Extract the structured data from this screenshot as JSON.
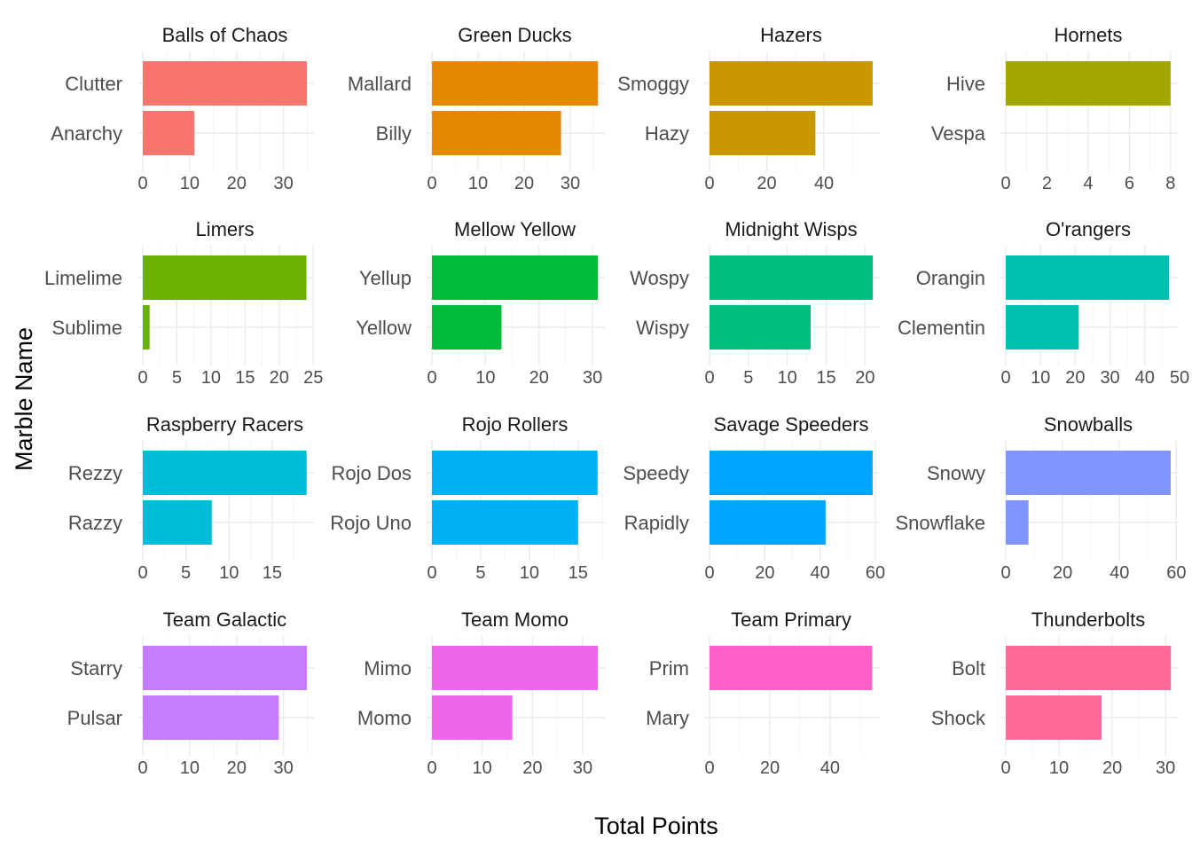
{
  "chart_data": {
    "type": "bar",
    "orientation": "horizontal",
    "faceted": true,
    "facet_grid": "4x4",
    "free_x_scales": true,
    "xlabel": "Total Points",
    "ylabel": "Marble Name",
    "grid": true,
    "legend": "none",
    "facets": [
      {
        "team": "Balls of Chaos",
        "color": "#F8766D",
        "bars": [
          {
            "name": "Clutter",
            "value": 35
          },
          {
            "name": "Anarchy",
            "value": 11
          }
        ],
        "xlim": [
          0,
          36.5
        ],
        "ticks": [
          0,
          10,
          20,
          30
        ],
        "tick_labels": [
          "0",
          "10",
          "20",
          "30"
        ]
      },
      {
        "team": "Green Ducks",
        "color": "#E58700",
        "bars": [
          {
            "name": "Mallard",
            "value": 36
          },
          {
            "name": "Billy",
            "value": 28
          }
        ],
        "xlim": [
          0,
          37.5
        ],
        "ticks": [
          0,
          10,
          20,
          30
        ],
        "tick_labels": [
          "0",
          "10",
          "20",
          "30"
        ]
      },
      {
        "team": "Hazers",
        "color": "#C99800",
        "bars": [
          {
            "name": "Smoggy",
            "value": 57
          },
          {
            "name": "Hazy",
            "value": 37
          }
        ],
        "xlim": [
          0,
          59.5
        ],
        "ticks": [
          0,
          20,
          40
        ],
        "tick_labels": [
          "0",
          "20",
          "40"
        ]
      },
      {
        "team": "Hornets",
        "color": "#A3A500",
        "bars": [
          {
            "name": "Hive",
            "value": 8
          },
          {
            "name": "Vespa",
            "value": 0
          }
        ],
        "xlim": [
          0,
          8.35
        ],
        "ticks": [
          0,
          2,
          4,
          6,
          8
        ],
        "tick_labels": [
          "0",
          "2",
          "4",
          "6",
          "8"
        ]
      },
      {
        "team": "Limers",
        "color": "#6BB100",
        "bars": [
          {
            "name": "Limelime",
            "value": 24
          },
          {
            "name": "Sublime",
            "value": 1
          }
        ],
        "xlim": [
          0,
          25.1
        ],
        "ticks": [
          0,
          5,
          10,
          15,
          20,
          25
        ],
        "tick_labels": [
          "0",
          "5",
          "10",
          "15",
          "20",
          "25"
        ]
      },
      {
        "team": "Mellow Yellow",
        "color": "#00BA38",
        "bars": [
          {
            "name": "Yellup",
            "value": 31
          },
          {
            "name": "Yellow",
            "value": 13
          }
        ],
        "xlim": [
          0,
          32.3
        ],
        "ticks": [
          0,
          10,
          20,
          30
        ],
        "tick_labels": [
          "0",
          "10",
          "20",
          "30"
        ]
      },
      {
        "team": "Midnight Wisps",
        "color": "#00BF7D",
        "bars": [
          {
            "name": "Wospy",
            "value": 21
          },
          {
            "name": "Wispy",
            "value": 13
          }
        ],
        "xlim": [
          0,
          21.9
        ],
        "ticks": [
          0,
          5,
          10,
          15,
          20
        ],
        "tick_labels": [
          "0",
          "5",
          "10",
          "15",
          "20"
        ]
      },
      {
        "team": "O'rangers",
        "color": "#00C0AF",
        "bars": [
          {
            "name": "Orangin",
            "value": 47
          },
          {
            "name": "Clementin",
            "value": 21
          }
        ],
        "xlim": [
          0,
          49.5
        ],
        "ticks": [
          0,
          10,
          20,
          30,
          40,
          50
        ],
        "tick_labels": [
          "0",
          "10",
          "20",
          "30",
          "40",
          "50"
        ]
      },
      {
        "team": "Raspberry Racers",
        "color": "#00BCD8",
        "bars": [
          {
            "name": "Rezzy",
            "value": 19
          },
          {
            "name": "Razzy",
            "value": 8
          }
        ],
        "xlim": [
          0,
          19.85
        ],
        "ticks": [
          0,
          5,
          10,
          15
        ],
        "tick_labels": [
          "0",
          "5",
          "10",
          "15"
        ]
      },
      {
        "team": "Rojo Rollers",
        "color": "#00B0F6",
        "bars": [
          {
            "name": "Rojo Dos",
            "value": 17
          },
          {
            "name": "Rojo Uno",
            "value": 15
          }
        ],
        "xlim": [
          0,
          17.75
        ],
        "ticks": [
          0,
          5,
          10,
          15
        ],
        "tick_labels": [
          "0",
          "5",
          "10",
          "15"
        ]
      },
      {
        "team": "Savage Speeders",
        "color": "#00A5FF",
        "bars": [
          {
            "name": "Speedy",
            "value": 59
          },
          {
            "name": "Rapidly",
            "value": 42
          }
        ],
        "xlim": [
          0,
          61.6
        ],
        "ticks": [
          0,
          20,
          40,
          60
        ],
        "tick_labels": [
          "0",
          "20",
          "40",
          "60"
        ]
      },
      {
        "team": "Snowballs",
        "color": "#7F96FF",
        "bars": [
          {
            "name": "Snowy",
            "value": 58
          },
          {
            "name": "Snowflake",
            "value": 8
          }
        ],
        "xlim": [
          0,
          60.5
        ],
        "ticks": [
          0,
          20,
          40,
          60
        ],
        "tick_labels": [
          "0",
          "20",
          "40",
          "60"
        ]
      },
      {
        "team": "Team Galactic",
        "color": "#C77CFF",
        "bars": [
          {
            "name": "Starry",
            "value": 35
          },
          {
            "name": "Pulsar",
            "value": 29
          }
        ],
        "xlim": [
          0,
          36.5
        ],
        "ticks": [
          0,
          10,
          20,
          30
        ],
        "tick_labels": [
          "0",
          "10",
          "20",
          "30"
        ]
      },
      {
        "team": "Team Momo",
        "color": "#F066EA",
        "bars": [
          {
            "name": "Mimo",
            "value": 33
          },
          {
            "name": "Momo",
            "value": 16
          }
        ],
        "xlim": [
          0,
          34.4
        ],
        "ticks": [
          0,
          10,
          20,
          30
        ],
        "tick_labels": [
          "0",
          "10",
          "20",
          "30"
        ]
      },
      {
        "team": "Team Primary",
        "color": "#FF61C9",
        "bars": [
          {
            "name": "Prim",
            "value": 54
          },
          {
            "name": "Mary",
            "value": 0
          }
        ],
        "xlim": [
          0,
          56.5
        ],
        "ticks": [
          0,
          20,
          40
        ],
        "tick_labels": [
          "0",
          "20",
          "40"
        ]
      },
      {
        "team": "Thunderbolts",
        "color": "#FF6A98",
        "bars": [
          {
            "name": "Bolt",
            "value": 31
          },
          {
            "name": "Shock",
            "value": 18
          }
        ],
        "xlim": [
          0,
          32.3
        ],
        "ticks": [
          0,
          10,
          20,
          30
        ],
        "tick_labels": [
          "0",
          "10",
          "20",
          "30"
        ]
      }
    ]
  }
}
